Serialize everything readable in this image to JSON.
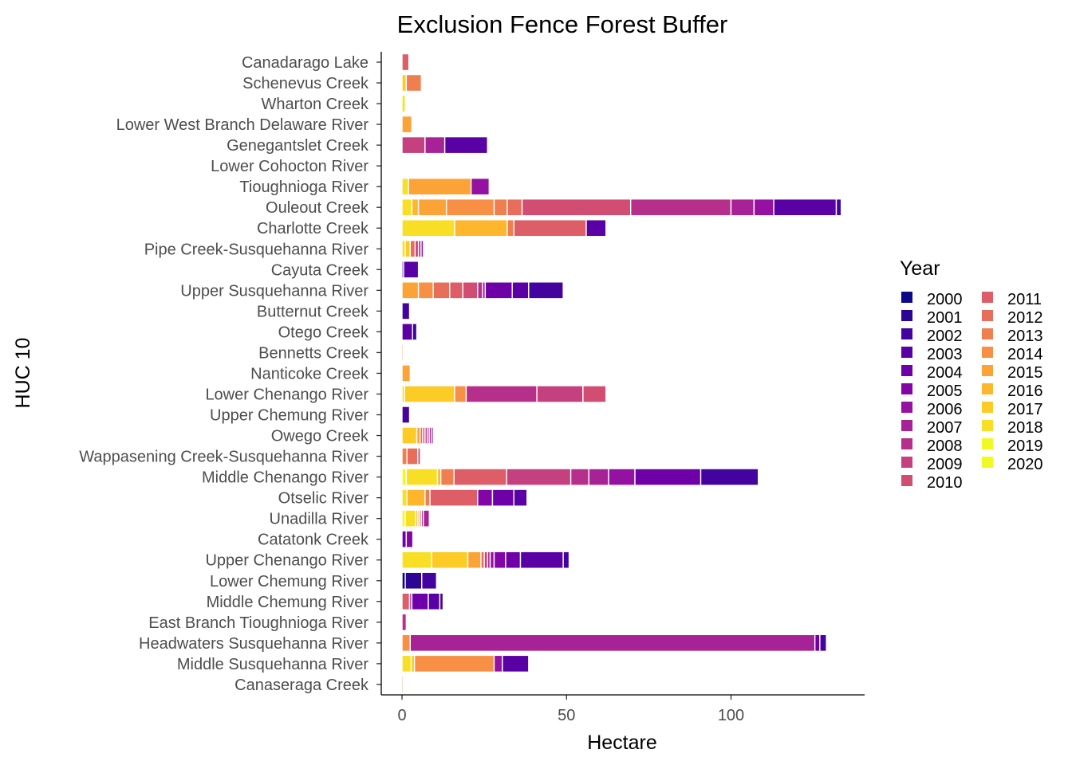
{
  "chart_data": {
    "type": "bar",
    "orientation": "horizontal",
    "stacked": true,
    "title": "Exclusion Fence Forest Buffer",
    "xlabel": "Hectare",
    "ylabel": "HUC 10",
    "xlim": [
      0,
      140
    ],
    "x_ticks": [
      0,
      50,
      100
    ],
    "x_tick_labels": [
      "0",
      "50",
      "100"
    ],
    "grid": false,
    "legend": {
      "title": "Year",
      "position": "right",
      "columns": 2,
      "entries": [
        {
          "label": "2000",
          "color": "#0d0887"
        },
        {
          "label": "2001",
          "color": "#2c0594"
        },
        {
          "label": "2002",
          "color": "#43039e"
        },
        {
          "label": "2003",
          "color": "#5901a5"
        },
        {
          "label": "2004",
          "color": "#6e00a8"
        },
        {
          "label": "2005",
          "color": "#8305a7"
        },
        {
          "label": "2006",
          "color": "#9511a1"
        },
        {
          "label": "2007",
          "color": "#a72197"
        },
        {
          "label": "2008",
          "color": "#b6308b"
        },
        {
          "label": "2009",
          "color": "#c5407e"
        },
        {
          "label": "2010",
          "color": "#d14e72"
        },
        {
          "label": "2011",
          "color": "#dd5e66"
        },
        {
          "label": "2012",
          "color": "#e76e5b"
        },
        {
          "label": "2013",
          "color": "#f07f4f"
        },
        {
          "label": "2014",
          "color": "#f79044"
        },
        {
          "label": "2015",
          "color": "#fca338"
        },
        {
          "label": "2016",
          "color": "#feb72d"
        },
        {
          "label": "2017",
          "color": "#fccb26"
        },
        {
          "label": "2018",
          "color": "#f8df25"
        },
        {
          "label": "2019",
          "color": "#f0f921"
        },
        {
          "label": "2020",
          "color": "#f0f921"
        }
      ]
    },
    "categories": [
      "Canadarago Lake",
      "Schenevus Creek",
      "Wharton Creek",
      "Lower West Branch Delaware River",
      "Genegantslet Creek",
      "Lower Cohocton River",
      "Tioughnioga River",
      "Ouleout Creek",
      "Charlotte Creek",
      "Pipe Creek-Susquehanna River",
      "Cayuta Creek",
      "Upper Susquehanna River",
      "Butternut Creek",
      "Otego Creek",
      "Bennetts Creek",
      "Nanticoke Creek",
      "Lower Chenango River",
      "Upper Chemung River",
      "Owego Creek",
      "Wappasening Creek-Susquehanna River",
      "Middle Chenango River",
      "Otselic River",
      "Unadilla River",
      "Catatonk Creek",
      "Upper Chenango River",
      "Lower Chemung River",
      "Middle Chemung River",
      "East Branch Tioughnioga River",
      "Headwaters Susquehanna River",
      "Middle Susquehanna River",
      "Canaseraga Creek"
    ],
    "bars": [
      {
        "category": "Canadarago Lake",
        "segments": [
          {
            "year": "2011",
            "value": 2.1
          }
        ]
      },
      {
        "category": "Schenevus Creek",
        "segments": [
          {
            "year": "2017",
            "value": 1.3
          },
          {
            "year": "2013",
            "value": 4.6
          }
        ]
      },
      {
        "category": "Wharton Creek",
        "segments": [
          {
            "year": "2018",
            "value": 1.0
          }
        ]
      },
      {
        "category": "Lower West Branch Delaware River",
        "segments": [
          {
            "year": "2015",
            "value": 3.0
          }
        ]
      },
      {
        "category": "Genegantslet Creek",
        "segments": [
          {
            "year": "2009",
            "value": 7.0
          },
          {
            "year": "2007",
            "value": 6.0
          },
          {
            "year": "2003",
            "value": 13.0
          }
        ]
      },
      {
        "category": "Lower Cohocton River",
        "segments": []
      },
      {
        "category": "Tioughnioga River",
        "segments": [
          {
            "year": "2018",
            "value": 2.0
          },
          {
            "year": "2015",
            "value": 19.0
          },
          {
            "year": "2006",
            "value": 5.5
          }
        ]
      },
      {
        "category": "Ouleout Creek",
        "segments": [
          {
            "year": "2018",
            "value": 3.0
          },
          {
            "year": "2016",
            "value": 2.0
          },
          {
            "year": "2015",
            "value": 8.5
          },
          {
            "year": "2014",
            "value": 14.5
          },
          {
            "year": "2013",
            "value": 4.0
          },
          {
            "year": "2012",
            "value": 4.5
          },
          {
            "year": "2010",
            "value": 33.0
          },
          {
            "year": "2008",
            "value": 30.5
          },
          {
            "year": "2007",
            "value": 7.0
          },
          {
            "year": "2006",
            "value": 6.0
          },
          {
            "year": "2003",
            "value": 19.0
          },
          {
            "year": "2002",
            "value": 1.5
          }
        ]
      },
      {
        "category": "Charlotte Creek",
        "segments": [
          {
            "year": "2018",
            "value": 16.0
          },
          {
            "year": "2016",
            "value": 16.0
          },
          {
            "year": "2013",
            "value": 2.0
          },
          {
            "year": "2011",
            "value": 22.0
          },
          {
            "year": "2003",
            "value": 6.0
          }
        ]
      },
      {
        "category": "Pipe Creek-Susquehanna River",
        "segments": [
          {
            "year": "2018",
            "value": 1.0
          },
          {
            "year": "2017",
            "value": 1.5
          },
          {
            "year": "2012",
            "value": 1.5
          },
          {
            "year": "2009",
            "value": 1.0
          },
          {
            "year": "2008",
            "value": 0.8
          },
          {
            "year": "2006",
            "value": 0.7
          }
        ]
      },
      {
        "category": "Cayuta Creek",
        "segments": [
          {
            "year": "2001",
            "value": 0.5
          },
          {
            "year": "2003",
            "value": 4.5
          }
        ]
      },
      {
        "category": "Upper Susquehanna River",
        "segments": [
          {
            "year": "2015",
            "value": 5.0
          },
          {
            "year": "2014",
            "value": 4.5
          },
          {
            "year": "2012",
            "value": 5.0
          },
          {
            "year": "2011",
            "value": 4.0
          },
          {
            "year": "2010",
            "value": 4.5
          },
          {
            "year": "2008",
            "value": 1.5
          },
          {
            "year": "2006",
            "value": 0.8
          },
          {
            "year": "2004",
            "value": 8.2
          },
          {
            "year": "2003",
            "value": 5.0
          },
          {
            "year": "2002",
            "value": 10.5
          }
        ]
      },
      {
        "category": "Butternut Creek",
        "segments": [
          {
            "year": "2002",
            "value": 2.3
          }
        ]
      },
      {
        "category": "Otego Creek",
        "segments": [
          {
            "year": "2003",
            "value": 3.2
          },
          {
            "year": "2002",
            "value": 1.3
          }
        ]
      },
      {
        "category": "Bennetts Creek",
        "segments": [
          {
            "year": "2013",
            "value": 0.4
          }
        ]
      },
      {
        "category": "Nanticoke Creek",
        "segments": [
          {
            "year": "2015",
            "value": 2.5
          }
        ]
      },
      {
        "category": "Lower Chenango River",
        "segments": [
          {
            "year": "2018",
            "value": 0.8
          },
          {
            "year": "2017",
            "value": 15.2
          },
          {
            "year": "2014",
            "value": 3.5
          },
          {
            "year": "2008",
            "value": 21.5
          },
          {
            "year": "2009",
            "value": 14.0
          },
          {
            "year": "2010",
            "value": 7.0
          }
        ]
      },
      {
        "category": "Upper Chemung River",
        "segments": [
          {
            "year": "2002",
            "value": 2.3
          }
        ]
      },
      {
        "category": "Owego Creek",
        "segments": [
          {
            "year": "2017",
            "value": 4.5
          },
          {
            "year": "2015",
            "value": 1.0
          },
          {
            "year": "2012",
            "value": 0.8
          },
          {
            "year": "2010",
            "value": 0.7
          },
          {
            "year": "2009",
            "value": 0.7
          },
          {
            "year": "2008",
            "value": 0.6
          },
          {
            "year": "2007",
            "value": 0.6
          },
          {
            "year": "2005",
            "value": 0.6
          }
        ]
      },
      {
        "category": "Wappasening Creek-Susquehanna River",
        "segments": [
          {
            "year": "2013",
            "value": 1.5
          },
          {
            "year": "2012",
            "value": 3.3
          },
          {
            "year": "2010",
            "value": 0.8
          }
        ]
      },
      {
        "category": "Middle Chenango River",
        "segments": [
          {
            "year": "2019",
            "value": 1.3
          },
          {
            "year": "2018",
            "value": 9.5
          },
          {
            "year": "2016",
            "value": 1.0
          },
          {
            "year": "2013",
            "value": 4.0
          },
          {
            "year": "2011",
            "value": 16.0
          },
          {
            "year": "2009",
            "value": 19.5
          },
          {
            "year": "2008",
            "value": 5.5
          },
          {
            "year": "2007",
            "value": 6.0
          },
          {
            "year": "2006",
            "value": 8.0
          },
          {
            "year": "2004",
            "value": 20.0
          },
          {
            "year": "2002",
            "value": 17.5
          }
        ]
      },
      {
        "category": "Otselic River",
        "segments": [
          {
            "year": "2018",
            "value": 1.5
          },
          {
            "year": "2016",
            "value": 5.5
          },
          {
            "year": "2013",
            "value": 1.5
          },
          {
            "year": "2011",
            "value": 14.5
          },
          {
            "year": "2005",
            "value": 4.5
          },
          {
            "year": "2004",
            "value": 6.5
          },
          {
            "year": "2003",
            "value": 4.0
          }
        ]
      },
      {
        "category": "Unadilla River",
        "segments": [
          {
            "year": "2019",
            "value": 1.0
          },
          {
            "year": "2018",
            "value": 3.2
          },
          {
            "year": "2016",
            "value": 0.6
          },
          {
            "year": "2015",
            "value": 0.5
          },
          {
            "year": "2012",
            "value": 0.6
          },
          {
            "year": "2008",
            "value": 0.6
          },
          {
            "year": "2007",
            "value": 1.8
          }
        ]
      },
      {
        "category": "Catatonk Creek",
        "segments": [
          {
            "year": "2004",
            "value": 1.3
          },
          {
            "year": "2005",
            "value": 2.0
          }
        ]
      },
      {
        "category": "Upper Chenango River",
        "segments": [
          {
            "year": "2018",
            "value": 9.0
          },
          {
            "year": "2017",
            "value": 11.0
          },
          {
            "year": "2015",
            "value": 4.0
          },
          {
            "year": "2012",
            "value": 1.0
          },
          {
            "year": "2009",
            "value": 1.0
          },
          {
            "year": "2008",
            "value": 0.8
          },
          {
            "year": "2006",
            "value": 1.2
          },
          {
            "year": "2005",
            "value": 3.5
          },
          {
            "year": "2004",
            "value": 4.5
          },
          {
            "year": "2003",
            "value": 13.0
          },
          {
            "year": "2002",
            "value": 1.8
          }
        ]
      },
      {
        "category": "Lower Chemung River",
        "segments": [
          {
            "year": "2000",
            "value": 1.0
          },
          {
            "year": "2001",
            "value": 5.0
          },
          {
            "year": "2002",
            "value": 4.5
          }
        ]
      },
      {
        "category": "Middle Chemung River",
        "segments": [
          {
            "year": "2011",
            "value": 2.3
          },
          {
            "year": "2008",
            "value": 0.7
          },
          {
            "year": "2004",
            "value": 5.0
          },
          {
            "year": "2003",
            "value": 3.5
          },
          {
            "year": "2002",
            "value": 1.0
          }
        ]
      },
      {
        "category": "East Branch Tioughnioga River",
        "segments": [
          {
            "year": "2008",
            "value": 1.3
          }
        ]
      },
      {
        "category": "Headwaters Susquehanna River",
        "segments": [
          {
            "year": "2014",
            "value": 2.5
          },
          {
            "year": "2007",
            "value": 123.0
          },
          {
            "year": "2004",
            "value": 1.5
          },
          {
            "year": "2002",
            "value": 2.0
          }
        ]
      },
      {
        "category": "Middle Susquehanna River",
        "segments": [
          {
            "year": "2018",
            "value": 2.8
          },
          {
            "year": "2017",
            "value": 1.0
          },
          {
            "year": "2014",
            "value": 24.2
          },
          {
            "year": "2006",
            "value": 2.5
          },
          {
            "year": "2003",
            "value": 8.0
          }
        ]
      },
      {
        "category": "Canaseraga Creek",
        "segments": [
          {
            "year": "2013",
            "value": 0.4
          }
        ]
      }
    ]
  }
}
